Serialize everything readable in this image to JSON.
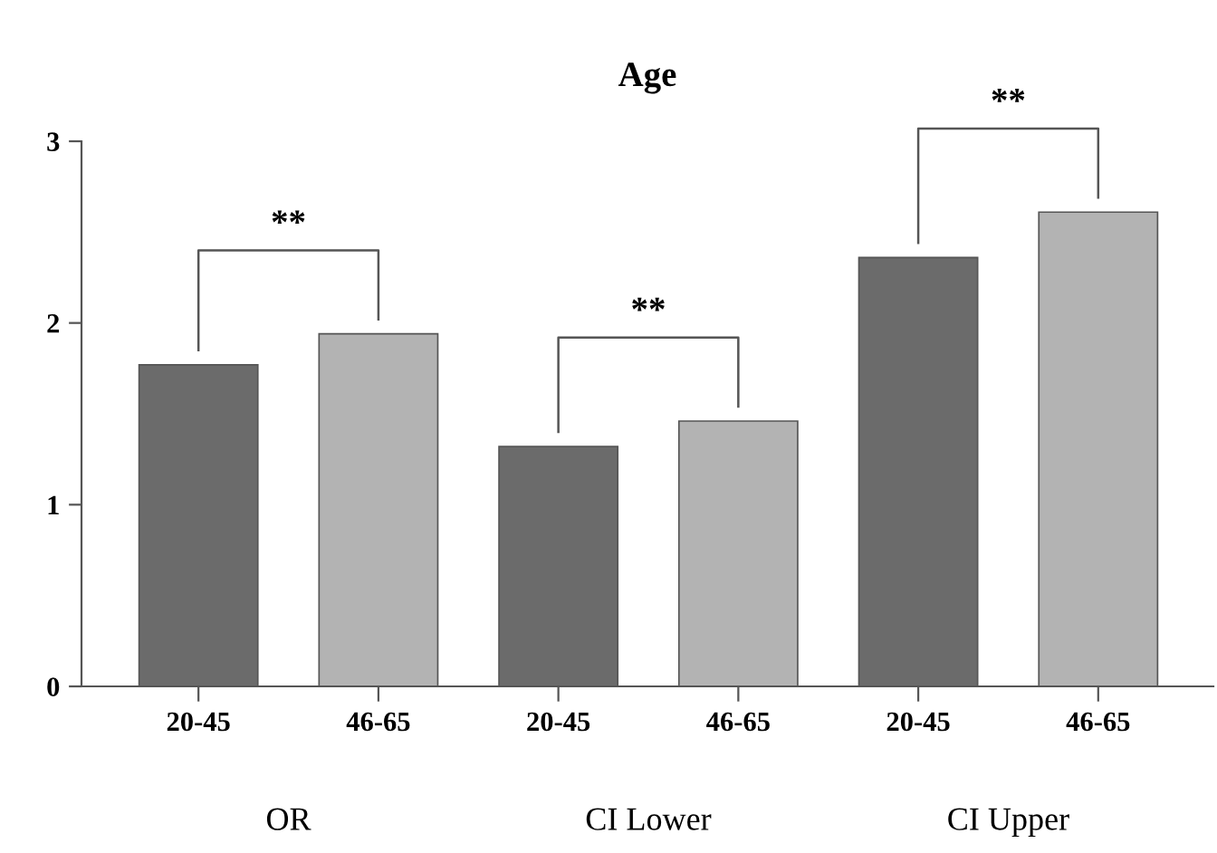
{
  "chart_data": {
    "type": "bar",
    "title": "Age",
    "categories": [
      "OR",
      "CI Lower",
      "CI Upper"
    ],
    "series": [
      {
        "name": "20-45",
        "color": "#6b6b6b",
        "values": [
          1.77,
          1.32,
          2.36
        ]
      },
      {
        "name": "46-65",
        "color": "#b3b3b3",
        "values": [
          1.94,
          1.46,
          2.61
        ]
      }
    ],
    "ylim": [
      0,
      3
    ],
    "yticks": [
      0,
      1,
      2,
      3
    ],
    "grid": false,
    "legend": "bottom",
    "annotations": [
      "**",
      "**",
      "**"
    ]
  }
}
